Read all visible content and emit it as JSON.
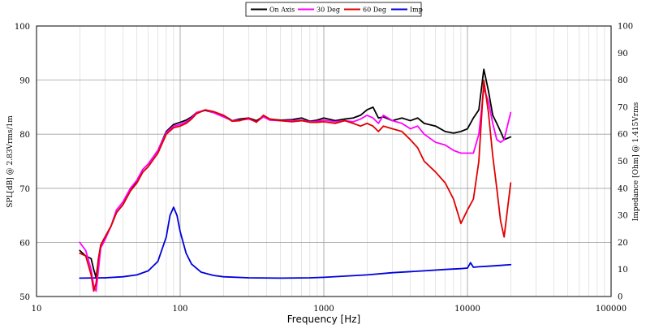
{
  "chart_data": {
    "type": "line",
    "xlabel": "Frequency [Hz]",
    "ylabel": "SPL[dB] @ 2.83Vrms/1m",
    "y2label": "Impedance [Ohm] @ 1.415Vrms",
    "xscale": "log",
    "xlim": [
      10,
      100000
    ],
    "ylim": [
      50,
      100
    ],
    "y2lim": [
      0,
      100
    ],
    "grid": true,
    "legend_position": "top-center",
    "x_tick_labels": [
      "10",
      "100",
      "1000",
      "10000",
      "100000"
    ],
    "y_tick_labels": [
      "50",
      "60",
      "70",
      "80",
      "90",
      "100"
    ],
    "y2_tick_labels": [
      "0",
      "10",
      "20",
      "30",
      "40",
      "50",
      "60",
      "70",
      "80",
      "90",
      "100"
    ],
    "series": [
      {
        "name": "On Axis",
        "color": "#000000",
        "axis": "left",
        "points": [
          [
            20,
            58.5
          ],
          [
            22,
            57.5
          ],
          [
            24,
            57
          ],
          [
            25,
            55
          ],
          [
            26,
            53.5
          ],
          [
            27,
            57
          ],
          [
            28,
            59.5
          ],
          [
            30,
            61
          ],
          [
            33,
            63
          ],
          [
            36,
            65.5
          ],
          [
            40,
            67
          ],
          [
            45,
            69.5
          ],
          [
            50,
            71.5
          ],
          [
            55,
            73.5
          ],
          [
            60,
            74.5
          ],
          [
            70,
            77
          ],
          [
            80,
            80.5
          ],
          [
            90,
            81.8
          ],
          [
            100,
            82.2
          ],
          [
            110,
            82.6
          ],
          [
            120,
            83.2
          ],
          [
            130,
            84
          ],
          [
            150,
            84.4
          ],
          [
            170,
            84
          ],
          [
            200,
            83.5
          ],
          [
            230,
            82.5
          ],
          [
            260,
            82.8
          ],
          [
            300,
            83
          ],
          [
            340,
            82.5
          ],
          [
            380,
            83.3
          ],
          [
            420,
            82.8
          ],
          [
            500,
            82.6
          ],
          [
            600,
            82.7
          ],
          [
            700,
            83
          ],
          [
            800,
            82.4
          ],
          [
            900,
            82.6
          ],
          [
            1000,
            83
          ],
          [
            1200,
            82.5
          ],
          [
            1400,
            82.8
          ],
          [
            1600,
            83
          ],
          [
            1800,
            83.5
          ],
          [
            2000,
            84.5
          ],
          [
            2200,
            85
          ],
          [
            2400,
            83
          ],
          [
            2600,
            83.2
          ],
          [
            3000,
            82.5
          ],
          [
            3500,
            83
          ],
          [
            4000,
            82.5
          ],
          [
            4500,
            83
          ],
          [
            5000,
            82
          ],
          [
            6000,
            81.5
          ],
          [
            7000,
            80.5
          ],
          [
            8000,
            80.2
          ],
          [
            9000,
            80.5
          ],
          [
            10000,
            81
          ],
          [
            11000,
            83
          ],
          [
            12000,
            84.5
          ],
          [
            13000,
            92
          ],
          [
            14000,
            88
          ],
          [
            15000,
            83.5
          ],
          [
            16000,
            82
          ],
          [
            17000,
            80.5
          ],
          [
            18000,
            79
          ],
          [
            20000,
            79.5
          ]
        ]
      },
      {
        "name": "30 Deg",
        "color": "#ff00ff",
        "axis": "left",
        "points": [
          [
            20,
            60
          ],
          [
            22,
            58.5
          ],
          [
            24,
            55
          ],
          [
            25,
            52
          ],
          [
            26,
            51
          ],
          [
            27,
            55
          ],
          [
            28,
            59
          ],
          [
            30,
            60.5
          ],
          [
            33,
            63
          ],
          [
            36,
            66
          ],
          [
            40,
            67.5
          ],
          [
            45,
            70
          ],
          [
            50,
            71.5
          ],
          [
            55,
            73.5
          ],
          [
            60,
            74.5
          ],
          [
            70,
            77
          ],
          [
            80,
            80.3
          ],
          [
            90,
            81.5
          ],
          [
            100,
            81.8
          ],
          [
            110,
            82.3
          ],
          [
            120,
            83
          ],
          [
            130,
            84
          ],
          [
            150,
            84.5
          ],
          [
            170,
            84
          ],
          [
            200,
            83.2
          ],
          [
            230,
            82.5
          ],
          [
            260,
            82.6
          ],
          [
            300,
            82.8
          ],
          [
            340,
            82.3
          ],
          [
            380,
            83.2
          ],
          [
            420,
            82.6
          ],
          [
            500,
            82.5
          ],
          [
            600,
            82.5
          ],
          [
            700,
            82.6
          ],
          [
            800,
            82.3
          ],
          [
            900,
            82.4
          ],
          [
            1000,
            82.6
          ],
          [
            1200,
            82.3
          ],
          [
            1400,
            82.5
          ],
          [
            1600,
            82.3
          ],
          [
            1800,
            82.8
          ],
          [
            2000,
            83.5
          ],
          [
            2200,
            83
          ],
          [
            2400,
            82
          ],
          [
            2600,
            83.5
          ],
          [
            3000,
            82.5
          ],
          [
            3500,
            82
          ],
          [
            4000,
            81
          ],
          [
            4500,
            81.5
          ],
          [
            5000,
            80
          ],
          [
            6000,
            78.5
          ],
          [
            7000,
            78
          ],
          [
            8000,
            77
          ],
          [
            9000,
            76.5
          ],
          [
            10000,
            76.5
          ],
          [
            11000,
            76.5
          ],
          [
            12000,
            80
          ],
          [
            13000,
            88.5
          ],
          [
            14000,
            86
          ],
          [
            15000,
            82
          ],
          [
            16000,
            79
          ],
          [
            17000,
            78.5
          ],
          [
            18000,
            79
          ],
          [
            20000,
            84
          ]
        ]
      },
      {
        "name": "60 Deg",
        "color": "#e00000",
        "axis": "left",
        "points": [
          [
            20,
            58
          ],
          [
            22,
            57.5
          ],
          [
            24,
            54
          ],
          [
            25,
            51
          ],
          [
            26,
            52.5
          ],
          [
            27,
            57
          ],
          [
            28,
            59.5
          ],
          [
            30,
            61
          ],
          [
            33,
            63
          ],
          [
            36,
            65.5
          ],
          [
            40,
            67
          ],
          [
            45,
            69.5
          ],
          [
            50,
            71
          ],
          [
            55,
            73
          ],
          [
            60,
            74
          ],
          [
            70,
            76.5
          ],
          [
            80,
            80
          ],
          [
            90,
            81.2
          ],
          [
            100,
            81.5
          ],
          [
            110,
            82
          ],
          [
            120,
            82.8
          ],
          [
            130,
            83.8
          ],
          [
            150,
            84.5
          ],
          [
            170,
            84.2
          ],
          [
            200,
            83.5
          ],
          [
            230,
            82.4
          ],
          [
            260,
            82.5
          ],
          [
            300,
            83
          ],
          [
            340,
            82.2
          ],
          [
            380,
            83.5
          ],
          [
            420,
            82.8
          ],
          [
            500,
            82.5
          ],
          [
            600,
            82.3
          ],
          [
            700,
            82.5
          ],
          [
            800,
            82.2
          ],
          [
            900,
            82.2
          ],
          [
            1000,
            82.3
          ],
          [
            1200,
            82
          ],
          [
            1400,
            82.5
          ],
          [
            1600,
            82
          ],
          [
            1800,
            81.5
          ],
          [
            2000,
            82
          ],
          [
            2200,
            81.5
          ],
          [
            2400,
            80.5
          ],
          [
            2600,
            81.5
          ],
          [
            3000,
            81
          ],
          [
            3500,
            80.5
          ],
          [
            4000,
            79
          ],
          [
            4500,
            77.5
          ],
          [
            5000,
            75
          ],
          [
            6000,
            73
          ],
          [
            7000,
            71
          ],
          [
            8000,
            68
          ],
          [
            9000,
            63.5
          ],
          [
            10000,
            66
          ],
          [
            11000,
            68
          ],
          [
            12000,
            75
          ],
          [
            13000,
            90
          ],
          [
            14000,
            84
          ],
          [
            15000,
            76
          ],
          [
            16000,
            70
          ],
          [
            17000,
            64
          ],
          [
            18000,
            61
          ],
          [
            20000,
            71
          ]
        ]
      },
      {
        "name": "Imp",
        "color": "#0000dd",
        "axis": "right",
        "points": [
          [
            20,
            6.8
          ],
          [
            30,
            6.9
          ],
          [
            40,
            7.3
          ],
          [
            50,
            8
          ],
          [
            60,
            9.5
          ],
          [
            70,
            13
          ],
          [
            80,
            22
          ],
          [
            85,
            30
          ],
          [
            90,
            33
          ],
          [
            95,
            30
          ],
          [
            100,
            24
          ],
          [
            110,
            16
          ],
          [
            120,
            12
          ],
          [
            140,
            9
          ],
          [
            170,
            7.8
          ],
          [
            200,
            7.3
          ],
          [
            300,
            6.9
          ],
          [
            500,
            6.8
          ],
          [
            800,
            6.9
          ],
          [
            1000,
            7.1
          ],
          [
            2000,
            8
          ],
          [
            3000,
            8.8
          ],
          [
            5000,
            9.5
          ],
          [
            7000,
            10
          ],
          [
            9000,
            10.3
          ],
          [
            10000,
            10.5
          ],
          [
            10500,
            12.5
          ],
          [
            11000,
            10.8
          ],
          [
            12000,
            11
          ],
          [
            14000,
            11.2
          ],
          [
            17000,
            11.5
          ],
          [
            20000,
            11.8
          ]
        ]
      }
    ]
  }
}
